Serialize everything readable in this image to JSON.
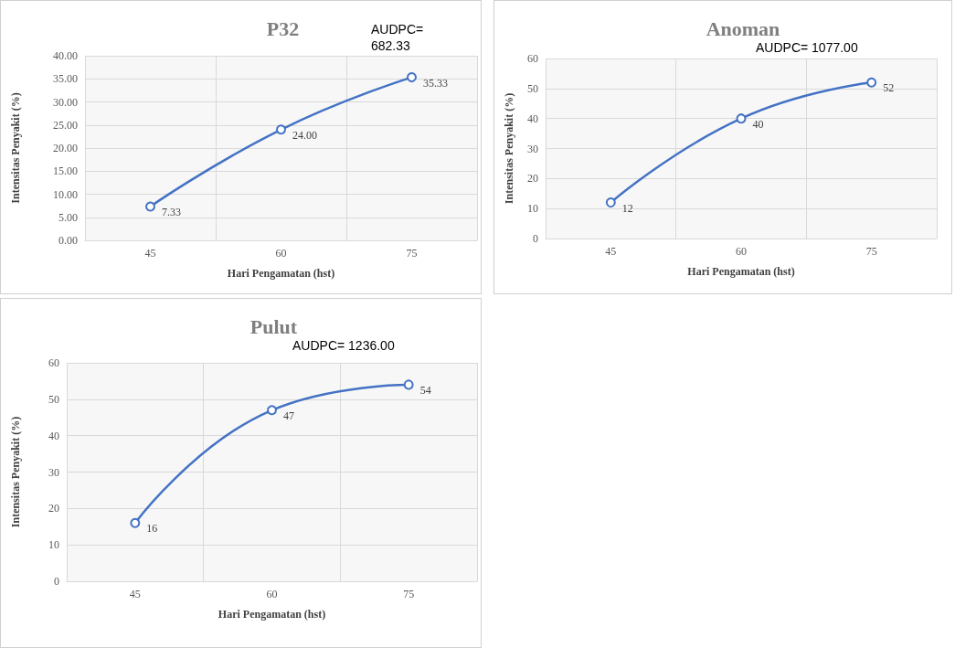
{
  "chart_data": [
    {
      "type": "line",
      "title": "P32",
      "xlabel": "Hari Pengamatan (hst)",
      "ylabel": "Intensitas Penyakit (%)",
      "annotations": [
        "AUDPC= 682.33"
      ],
      "categories": [
        "45",
        "60",
        "75"
      ],
      "series": [
        {
          "color": "#4472c4",
          "values": [
            7.33,
            24,
            35.33
          ],
          "value_labels": [
            "7.33",
            "24.00",
            "35.33"
          ]
        }
      ],
      "ylim": [
        0,
        40
      ],
      "yticks": [
        {
          "value": 0,
          "label": "0.00"
        },
        {
          "value": 5,
          "label": "5.00"
        },
        {
          "value": 10,
          "label": "10.00"
        },
        {
          "value": 15,
          "label": "15.00"
        },
        {
          "value": 20,
          "label": "20.00"
        },
        {
          "value": 25,
          "label": "25.00"
        },
        {
          "value": 30,
          "label": "30.00"
        },
        {
          "value": 35,
          "label": "35.00"
        },
        {
          "value": 40,
          "label": "40.00"
        }
      ],
      "grid": true,
      "marker": "circle",
      "line_style": "solid"
    },
    {
      "type": "line",
      "title": "Anoman",
      "xlabel": "Hari Pengamatan (hst)",
      "ylabel": "Intensitas Penyakit (%)",
      "annotations": [
        "AUDPC= 1077.00"
      ],
      "categories": [
        "45",
        "60",
        "75"
      ],
      "series": [
        {
          "color": "#4472c4",
          "values": [
            12,
            40,
            52
          ]
        }
      ],
      "ylim": [
        0,
        60
      ],
      "yticks": [
        0,
        10,
        20,
        30,
        40,
        50,
        60
      ],
      "data_labels": true,
      "grid": true,
      "marker": "circle",
      "line_style": "solid"
    },
    {
      "type": "line",
      "title": "Pulut",
      "xlabel": "Hari Pengamatan (hst)",
      "ylabel": "Intensitas Penyakit (%)",
      "annotations": [
        "AUDPC= 1236.00"
      ],
      "categories": [
        "45",
        "60",
        "75"
      ],
      "series": [
        {
          "color": "#4472c4",
          "values": [
            16,
            47,
            54
          ]
        }
      ],
      "ylim": [
        0,
        60
      ],
      "yticks": [
        0,
        10,
        20,
        30,
        40,
        50,
        60
      ],
      "data_labels": true,
      "grid": true,
      "marker": "circle",
      "line_style": "solid"
    }
  ]
}
